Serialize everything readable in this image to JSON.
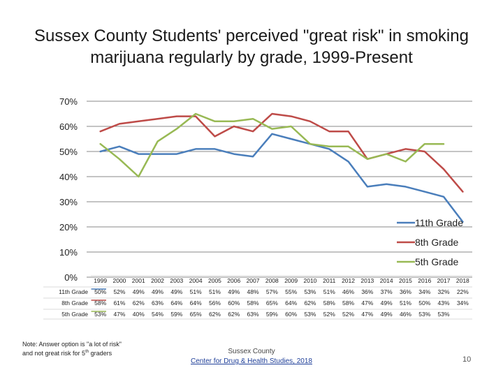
{
  "title_line1": "Sussex County Students' perceived \"great risk\" in smoking",
  "title_line2": "marijuana regularly by grade, 1999-Present",
  "note": {
    "text": "Note: Answer option is \"a lot of risk\"",
    "text2_prefix": "and not great risk for 5",
    "text2_sup": "th",
    "text2_suffix": " graders"
  },
  "source": {
    "org": "Sussex County",
    "link": "Center for Drug & Health Studies, 2018"
  },
  "page_number": "10",
  "chart_data": {
    "type": "line",
    "title": "",
    "xlabel": "",
    "ylabel": "",
    "ylim": [
      0,
      70
    ],
    "yticks": [
      0,
      10,
      20,
      30,
      40,
      50,
      60,
      70
    ],
    "ytick_labels": [
      "0%",
      "10%",
      "20%",
      "30%",
      "40%",
      "50%",
      "60%",
      "70%"
    ],
    "grid": true,
    "legend_position": "right",
    "categories": [
      "1999",
      "2000",
      "2001",
      "2002",
      "2003",
      "2004",
      "2005",
      "2006",
      "2007",
      "2008",
      "2009",
      "2010",
      "2011",
      "2012",
      "2013",
      "2014",
      "2015",
      "2016",
      "2017",
      "2018"
    ],
    "series": [
      {
        "name": "11th Grade",
        "color": "#4a7ebb",
        "values": [
          50,
          52,
          49,
          49,
          49,
          51,
          51,
          49,
          48,
          57,
          55,
          53,
          51,
          46,
          36,
          37,
          36,
          34,
          32,
          22
        ],
        "labels": [
          "50%",
          "52%",
          "49%",
          "49%",
          "49%",
          "51%",
          "51%",
          "49%",
          "48%",
          "57%",
          "55%",
          "53%",
          "51%",
          "46%",
          "36%",
          "37%",
          "36%",
          "34%",
          "32%",
          "22%"
        ]
      },
      {
        "name": "8th Grade",
        "color": "#be4b48",
        "values": [
          58,
          61,
          62,
          63,
          64,
          64,
          56,
          60,
          58,
          65,
          64,
          62,
          58,
          58,
          47,
          49,
          51,
          50,
          43,
          34
        ],
        "labels": [
          "58%",
          "61%",
          "62%",
          "63%",
          "64%",
          "64%",
          "56%",
          "60%",
          "58%",
          "65%",
          "64%",
          "62%",
          "58%",
          "58%",
          "47%",
          "49%",
          "51%",
          "50%",
          "43%",
          "34%"
        ]
      },
      {
        "name": "5th Grade",
        "color": "#98b954",
        "values": [
          53,
          47,
          40,
          54,
          59,
          65,
          62,
          62,
          63,
          59,
          60,
          53,
          52,
          52,
          47,
          49,
          46,
          53,
          53,
          null
        ],
        "labels": [
          "53%",
          "47%",
          "40%",
          "54%",
          "59%",
          "65%",
          "62%",
          "62%",
          "63%",
          "59%",
          "60%",
          "53%",
          "52%",
          "52%",
          "47%",
          "49%",
          "46%",
          "53%",
          "53%",
          ""
        ]
      }
    ]
  }
}
